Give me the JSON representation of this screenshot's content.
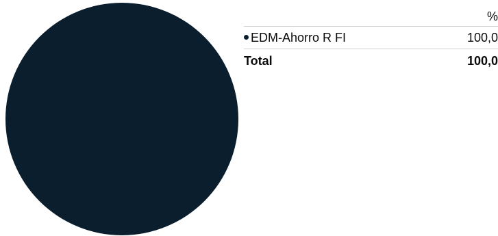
{
  "chart_data": {
    "type": "pie",
    "slices": [
      {
        "label": "EDM-Ahorro R FI",
        "value": 100.0,
        "color": "#0b1e2e"
      }
    ]
  },
  "table": {
    "header": "%",
    "rows": [
      {
        "name": "EDM-Ahorro R FI",
        "value": "100,0"
      }
    ],
    "total": {
      "name": "Total",
      "value": "100,0"
    }
  }
}
